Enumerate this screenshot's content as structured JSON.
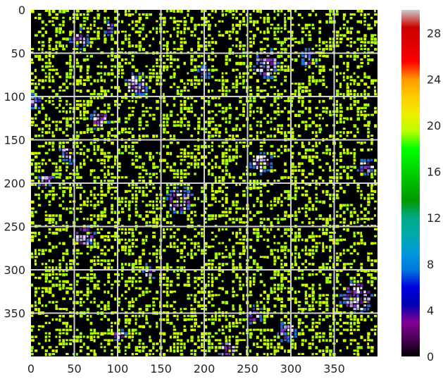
{
  "chart_data": {
    "type": "heatmap",
    "title": "",
    "xlabel": "",
    "ylabel": "",
    "x_range": [
      0,
      400
    ],
    "y_range": [
      0,
      400
    ],
    "y_inverted": true,
    "x_ticks": [
      "0",
      "50",
      "100",
      "150",
      "200",
      "250",
      "300",
      "350"
    ],
    "y_ticks": [
      "0",
      "50",
      "100",
      "150",
      "200",
      "250",
      "300",
      "350"
    ],
    "grid": true,
    "colormap": "nipy_spectral",
    "value_range": [
      0,
      30
    ],
    "colorbar_ticks": [
      "0",
      "4",
      "8",
      "12",
      "16",
      "20",
      "24",
      "28"
    ],
    "colorbar_position": "right",
    "background_value": 0,
    "dominant_value": 20,
    "hotspots": [
      {
        "x": 270,
        "y": 60,
        "r": 14
      },
      {
        "x": 53,
        "y": 32,
        "r": 9
      },
      {
        "x": 120,
        "y": 85,
        "r": 11
      },
      {
        "x": 78,
        "y": 125,
        "r": 9
      },
      {
        "x": 40,
        "y": 165,
        "r": 8
      },
      {
        "x": 265,
        "y": 175,
        "r": 10
      },
      {
        "x": 170,
        "y": 218,
        "r": 12
      },
      {
        "x": 385,
        "y": 180,
        "r": 8
      },
      {
        "x": 375,
        "y": 330,
        "r": 16
      },
      {
        "x": 320,
        "y": 55,
        "r": 8
      },
      {
        "x": 225,
        "y": 390,
        "r": 8
      },
      {
        "x": 90,
        "y": 20,
        "r": 6
      },
      {
        "x": 3,
        "y": 105,
        "r": 6
      },
      {
        "x": 200,
        "y": 70,
        "r": 6
      },
      {
        "x": 295,
        "y": 370,
        "r": 9
      },
      {
        "x": 60,
        "y": 260,
        "r": 9
      },
      {
        "x": 100,
        "y": 375,
        "r": 6
      },
      {
        "x": 15,
        "y": 195,
        "r": 6
      },
      {
        "x": 255,
        "y": 350,
        "r": 7
      },
      {
        "x": 135,
        "y": 300,
        "r": 6
      }
    ]
  }
}
